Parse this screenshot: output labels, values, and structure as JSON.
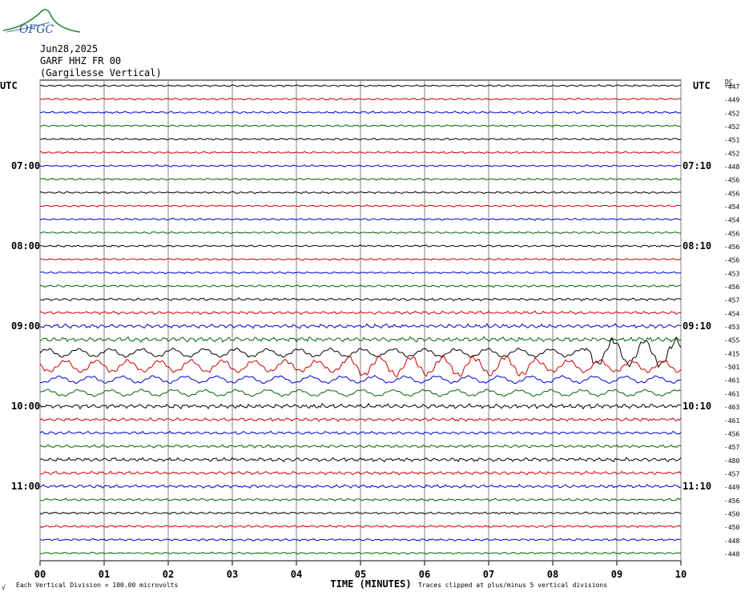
{
  "logo_text": "OFGC",
  "header": {
    "date": "Jun28,2025",
    "station": "GARF HHZ FR 00",
    "location": "(Gargilesse Vertical)"
  },
  "left_axis_title": "UTC",
  "right_axis_title": "UTC",
  "dc_title": "DC",
  "xlabel": "TIME (MINUTES)",
  "footer_left": "Each Vertical Division =  100.00 microvolts",
  "footer_right": "Traces clipped at plus/minus 5 vertical divisions",
  "footer_mark": "√",
  "colors": [
    "#000000",
    "#cc0000",
    "#0000cc",
    "#006600"
  ],
  "chart_data": {
    "type": "line",
    "x_ticks": [
      "00",
      "01",
      "02",
      "03",
      "04",
      "05",
      "06",
      "07",
      "08",
      "09",
      "10"
    ],
    "xlim": [
      0,
      10
    ],
    "left_time_labels": [
      {
        "row": 6,
        "label": "07:00"
      },
      {
        "row": 12,
        "label": "08:00"
      },
      {
        "row": 18,
        "label": "09:00"
      },
      {
        "row": 24,
        "label": "10:00"
      },
      {
        "row": 30,
        "label": "11:00"
      }
    ],
    "right_time_labels": [
      {
        "row": 6,
        "label": "07:10"
      },
      {
        "row": 12,
        "label": "08:10"
      },
      {
        "row": 18,
        "label": "09:10"
      },
      {
        "row": 24,
        "label": "10:10"
      },
      {
        "row": 30,
        "label": "11:10"
      }
    ],
    "dc_values": [
      "-447",
      "-449",
      "-452",
      "-452",
      "-451",
      "-452",
      "-448",
      "-456",
      "-456",
      "-454",
      "-454",
      "-456",
      "-456",
      "-456",
      "-453",
      "-456",
      "-457",
      "-454",
      "-453",
      "-455",
      "-415",
      "-501",
      "-461",
      "-461",
      "-463",
      "-461",
      "-456",
      "-457",
      "-480",
      "-457",
      "-449",
      "-456",
      "-450",
      "-450",
      "-448",
      "-448"
    ],
    "amplitudes": [
      0.6,
      0.6,
      0.7,
      0.6,
      0.6,
      0.6,
      0.6,
      0.6,
      0.6,
      0.6,
      0.6,
      0.6,
      0.6,
      0.6,
      0.6,
      0.7,
      0.8,
      0.9,
      1.3,
      1.5,
      2.6,
      3.8,
      2.2,
      2.0,
      1.4,
      1.0,
      0.9,
      0.9,
      1.2,
      1.0,
      1.0,
      0.8,
      0.7,
      0.7,
      0.7,
      0.6
    ]
  }
}
